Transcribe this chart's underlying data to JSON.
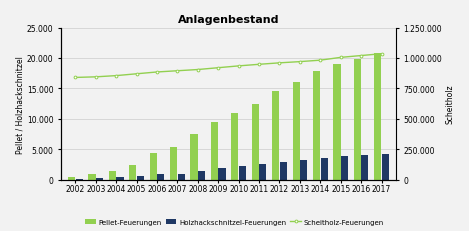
{
  "title": "Anlagenbestand",
  "years": [
    2002,
    2003,
    2004,
    2005,
    2006,
    2007,
    2008,
    2009,
    2010,
    2011,
    2012,
    2013,
    2014,
    2015,
    2016,
    2017
  ],
  "pellet": [
    500,
    900,
    1400,
    2400,
    4400,
    5400,
    7500,
    9500,
    11000,
    12500,
    14600,
    16100,
    17800,
    19000,
    19800,
    20800
  ],
  "hackschnitzel": [
    150,
    250,
    400,
    650,
    900,
    1000,
    1500,
    1850,
    2200,
    2600,
    2950,
    3200,
    3500,
    3900,
    4100,
    4200
  ],
  "scheitholz": [
    840000,
    845000,
    855000,
    870000,
    885000,
    895000,
    905000,
    920000,
    935000,
    948000,
    960000,
    970000,
    982000,
    1005000,
    1020000,
    1035000
  ],
  "pellet_color": "#92d050",
  "hackschnitzel_color": "#1f3864",
  "scheitholz_color": "#92d050",
  "background_color": "#f2f2f2",
  "grid_color": "#cccccc",
  "left_ylim": [
    0,
    25000
  ],
  "right_ylim": [
    0,
    1250000
  ],
  "left_yticks": [
    0,
    5000,
    10000,
    15000,
    20000,
    25000
  ],
  "right_yticks": [
    0,
    250000,
    500000,
    750000,
    1000000,
    1250000
  ],
  "ylabel_left": "Pellet / Holzhackschnitzel",
  "ylabel_right": "Scheitholz",
  "legend_pellet": "Pellet-Feuerungen",
  "legend_hack": "Holzhackschnitzel-Feuerungen",
  "legend_scheit": "Scheitholz-Feuerungen"
}
